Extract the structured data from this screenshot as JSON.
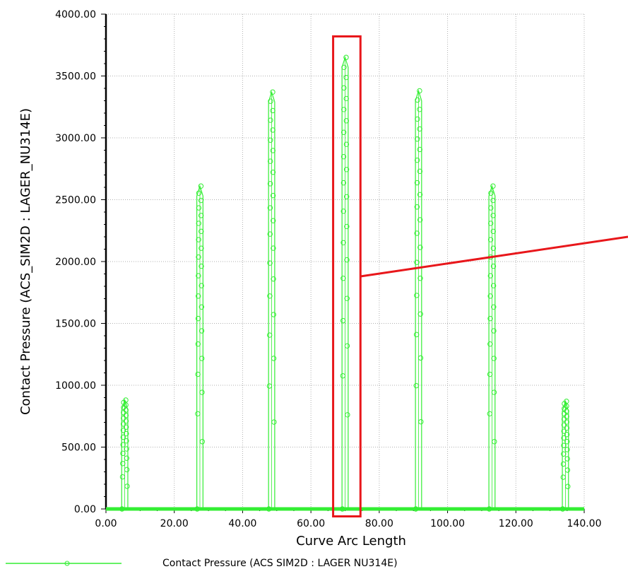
{
  "chart_data": {
    "type": "line",
    "title": "",
    "xlabel": "Curve Arc Length",
    "ylabel": "Contact Pressure (ACS_SIM2D : LAGER_NU314E)",
    "xlim": [
      0,
      140
    ],
    "ylim": [
      0,
      4000
    ],
    "x_ticks": [
      "0.00",
      "20.00",
      "40.00",
      "60.00",
      "80.00",
      "100.00",
      "120.00",
      "140.00"
    ],
    "y_ticks": [
      "0.00",
      "500.00",
      "1000.00",
      "1500.00",
      "2000.00",
      "2500.00",
      "3000.00",
      "3500.00",
      "4000.00"
    ],
    "grid": true,
    "legend_position": "bottom",
    "series": [
      {
        "name": "Contact Pressure (ACS  SIM2D : LAGER  NU314E)",
        "color": "#33ee33",
        "marker": "circle",
        "peaks": [
          {
            "x": 5.5,
            "value": 880
          },
          {
            "x": 27.5,
            "value": 2610
          },
          {
            "x": 48.5,
            "value": 3370
          },
          {
            "x": 70.0,
            "value": 3650
          },
          {
            "x": 91.5,
            "value": 3380
          },
          {
            "x": 113.0,
            "value": 2610
          },
          {
            "x": 134.5,
            "value": 870
          }
        ]
      }
    ]
  },
  "annotation": {
    "type": "highlight-box",
    "color": "#e8171b",
    "x_range": [
      66.5,
      74.5
    ],
    "y_range": [
      -60,
      3820
    ]
  }
}
